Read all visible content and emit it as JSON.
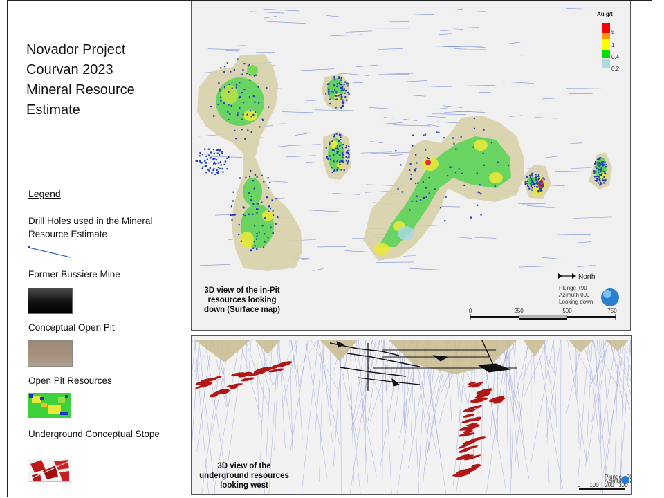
{
  "title": {
    "lines": [
      "Novador Project",
      "Courvan 2023",
      "Mineral Resource",
      "Estimate"
    ]
  },
  "legend": {
    "heading": "Legend",
    "items": [
      {
        "label": "Drill Holes used in the Mineral Resource Estimate"
      },
      {
        "label": "Former  Bussiere Mine"
      },
      {
        "label": "Conceptual Open Pit"
      },
      {
        "label": "Open Pit Resources"
      },
      {
        "label": "Underground  Conceptual Stope"
      }
    ]
  },
  "plan_view": {
    "caption_lines": [
      "3D view of the in-Pit",
      "resources looking",
      "down (Surface map)"
    ],
    "grade_legend": {
      "title": "Au g/t",
      "steps": [
        {
          "label": "5",
          "color": "#ff0000"
        },
        {
          "label": "1",
          "color": "#ffff00"
        },
        {
          "label": "0.4",
          "color": "#00dd00"
        },
        {
          "label": "0.2",
          "color": "#add8e6"
        }
      ]
    },
    "north_label": "North",
    "view_info": [
      "Plunge +90",
      "Azimuth 000",
      "Looking down"
    ],
    "scale_labels": [
      "0",
      "250",
      "500",
      "750"
    ]
  },
  "section_view": {
    "caption_lines": [
      "3D view of the",
      "underground resources",
      "looking west"
    ],
    "view_info": [
      "Plunge +00",
      "Azimuth 270"
    ],
    "scale_labels": [
      "0",
      "100",
      "200",
      "300"
    ]
  },
  "colors": {
    "pit_shell": "#d8d0a8",
    "drill_hole": "#1f3fbf",
    "stope": "#b01818",
    "former_mine": "#111111"
  }
}
